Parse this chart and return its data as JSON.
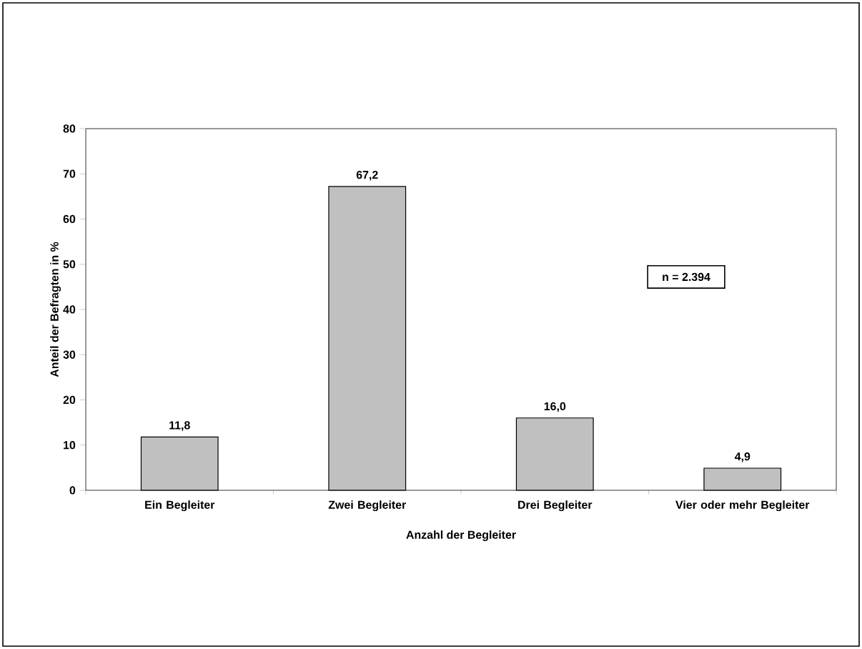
{
  "chart_data": {
    "type": "bar",
    "categories": [
      "Ein Begleiter",
      "Zwei Begleiter",
      "Drei Begleiter",
      "Vier oder mehr Begleiter"
    ],
    "values": [
      11.8,
      67.2,
      16.0,
      4.9
    ],
    "value_labels": [
      "11,8",
      "67,2",
      "16,0",
      "4,9"
    ],
    "color": "#c0c0c0",
    "xlabel": "Anzahl der Begleiter",
    "ylabel": "Anteil der Befragten in %",
    "ylim": [
      0,
      80
    ],
    "yticks": [
      0,
      10,
      20,
      30,
      40,
      50,
      60,
      70,
      80
    ],
    "annotations": [
      "n = 2.394"
    ]
  }
}
